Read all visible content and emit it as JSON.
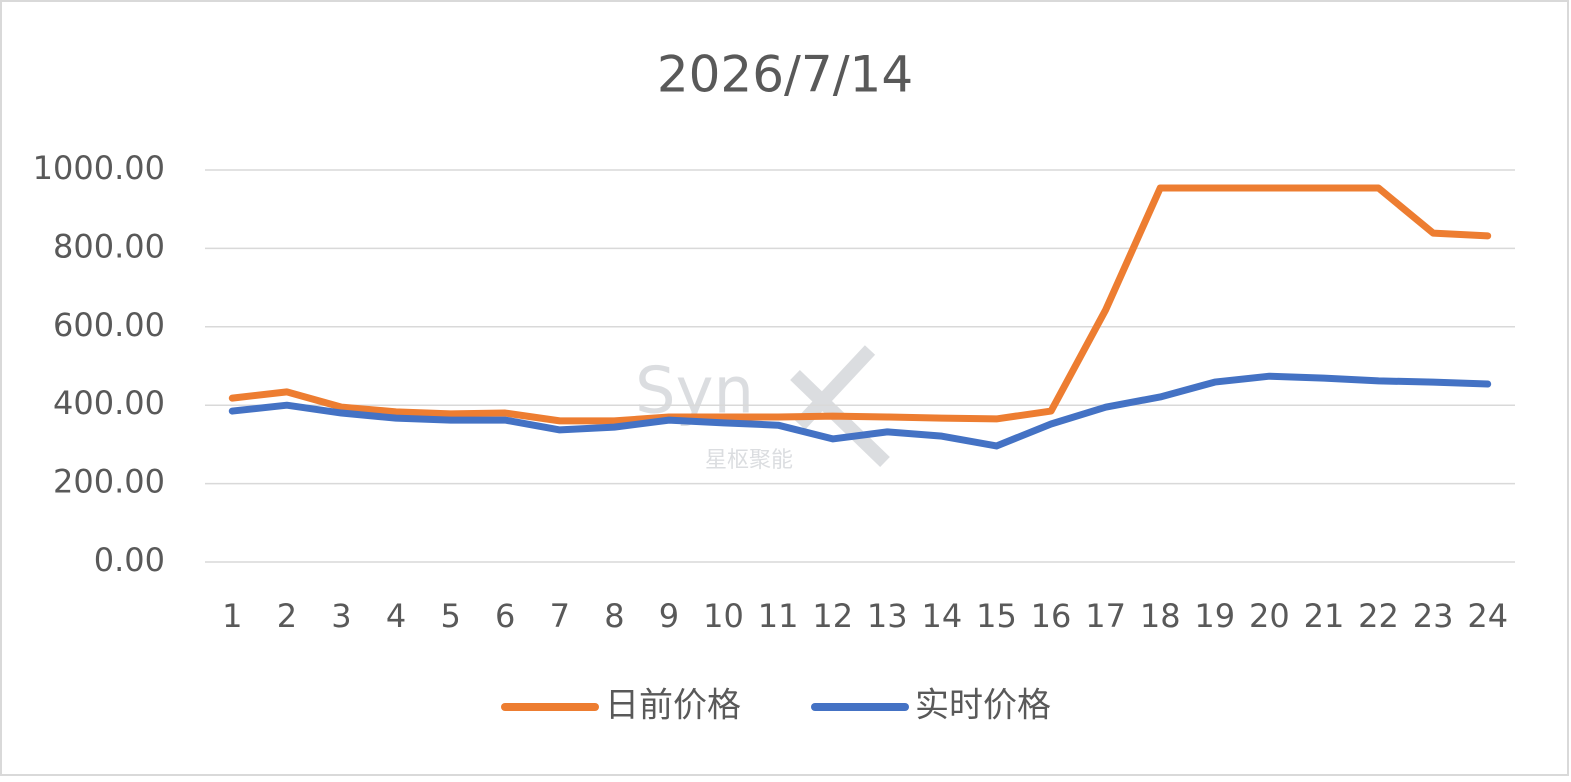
{
  "chart_data": {
    "type": "line",
    "title": "2026/7/14",
    "categories": [
      "1",
      "2",
      "3",
      "4",
      "5",
      "6",
      "7",
      "8",
      "9",
      "10",
      "11",
      "12",
      "13",
      "14",
      "15",
      "16",
      "17",
      "18",
      "19",
      "20",
      "21",
      "22",
      "23",
      "24"
    ],
    "series": [
      {
        "name": "日前价格",
        "color": "#ed7d31",
        "values": [
          418,
          434,
          395,
          383,
          378,
          380,
          360,
          360,
          370,
          370,
          370,
          372,
          370,
          367,
          365,
          385,
          643,
          954,
          954,
          954,
          954,
          954,
          839,
          832
        ]
      },
      {
        "name": "实时价格",
        "color": "#4472c4",
        "values": [
          385,
          400,
          380,
          367,
          362,
          362,
          337,
          344,
          362,
          355,
          349,
          314,
          332,
          321,
          296,
          352,
          395,
          421,
          459,
          474,
          469,
          462,
          459,
          454
        ]
      }
    ],
    "ylim": [
      0,
      1000
    ],
    "yticks": [
      {
        "value": 0,
        "label": "0.00"
      },
      {
        "value": 200,
        "label": "200.00"
      },
      {
        "value": 400,
        "label": "400.00"
      },
      {
        "value": 600,
        "label": "600.00"
      },
      {
        "value": 800,
        "label": "800.00"
      },
      {
        "value": 1000,
        "label": "1000.00"
      }
    ],
    "grid": true,
    "legend": "bottom",
    "watermark": {
      "logo": "Syn",
      "subtitle": "星枢聚能"
    }
  }
}
